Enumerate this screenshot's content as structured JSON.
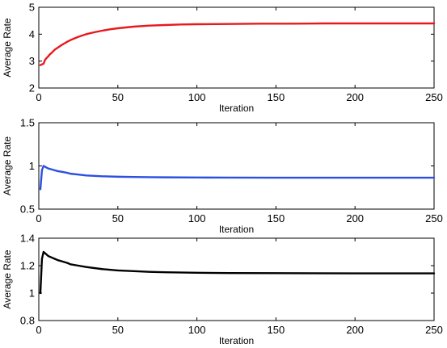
{
  "chart_data": [
    {
      "type": "line",
      "xlabel": "Iteration",
      "ylabel": "Average Rate",
      "xlim": [
        0,
        250
      ],
      "ylim": [
        2,
        5
      ],
      "xticks": [
        0,
        50,
        100,
        150,
        200,
        250
      ],
      "yticks": [
        2,
        3,
        4,
        5
      ],
      "grid": false,
      "series": [
        {
          "color": "#e8191d",
          "x": [
            1,
            2,
            3,
            4,
            5,
            6,
            7,
            8,
            9,
            10,
            12,
            14,
            16,
            18,
            20,
            22,
            25,
            28,
            30,
            35,
            40,
            45,
            50,
            60,
            70,
            80,
            90,
            100,
            120,
            140,
            160,
            180,
            200,
            220,
            250
          ],
          "values": [
            2.85,
            2.88,
            2.9,
            3.05,
            3.12,
            3.18,
            3.25,
            3.3,
            3.36,
            3.42,
            3.5,
            3.58,
            3.65,
            3.72,
            3.78,
            3.83,
            3.9,
            3.96,
            4.0,
            4.07,
            4.13,
            4.18,
            4.22,
            4.28,
            4.32,
            4.34,
            4.36,
            4.37,
            4.38,
            4.39,
            4.39,
            4.4,
            4.4,
            4.4,
            4.4
          ]
        }
      ]
    },
    {
      "type": "line",
      "xlabel": "Iteration",
      "ylabel": "Average Rate",
      "xlim": [
        0,
        250
      ],
      "ylim": [
        0.5,
        1.5
      ],
      "xticks": [
        0,
        50,
        100,
        150,
        200,
        250
      ],
      "yticks": [
        0.5,
        1,
        1.5
      ],
      "grid": false,
      "series": [
        {
          "color": "#2b4fe0",
          "x": [
            1,
            2,
            3,
            4,
            5,
            6,
            8,
            10,
            12,
            15,
            18,
            20,
            25,
            30,
            40,
            50,
            60,
            70,
            80,
            100,
            120,
            150,
            200,
            250
          ],
          "values": [
            0.73,
            0.95,
            1.0,
            0.99,
            0.98,
            0.97,
            0.96,
            0.95,
            0.94,
            0.93,
            0.92,
            0.91,
            0.9,
            0.89,
            0.88,
            0.875,
            0.872,
            0.87,
            0.868,
            0.866,
            0.865,
            0.864,
            0.864,
            0.864
          ]
        }
      ]
    },
    {
      "type": "line",
      "xlabel": "Iteration",
      "ylabel": "Average Rate",
      "xlim": [
        0,
        250
      ],
      "ylim": [
        0.8,
        1.4
      ],
      "xticks": [
        0,
        50,
        100,
        150,
        200,
        250
      ],
      "yticks": [
        0.8,
        1,
        1.2,
        1.4
      ],
      "grid": false,
      "series": [
        {
          "color": "#000000",
          "x": [
            1,
            2,
            3,
            4,
            5,
            6,
            8,
            10,
            12,
            15,
            18,
            20,
            25,
            30,
            40,
            50,
            60,
            70,
            80,
            100,
            120,
            150,
            200,
            250
          ],
          "values": [
            1.0,
            1.25,
            1.3,
            1.29,
            1.28,
            1.27,
            1.26,
            1.25,
            1.24,
            1.23,
            1.22,
            1.21,
            1.2,
            1.19,
            1.175,
            1.165,
            1.16,
            1.155,
            1.152,
            1.148,
            1.146,
            1.145,
            1.144,
            1.144
          ]
        }
      ]
    }
  ]
}
